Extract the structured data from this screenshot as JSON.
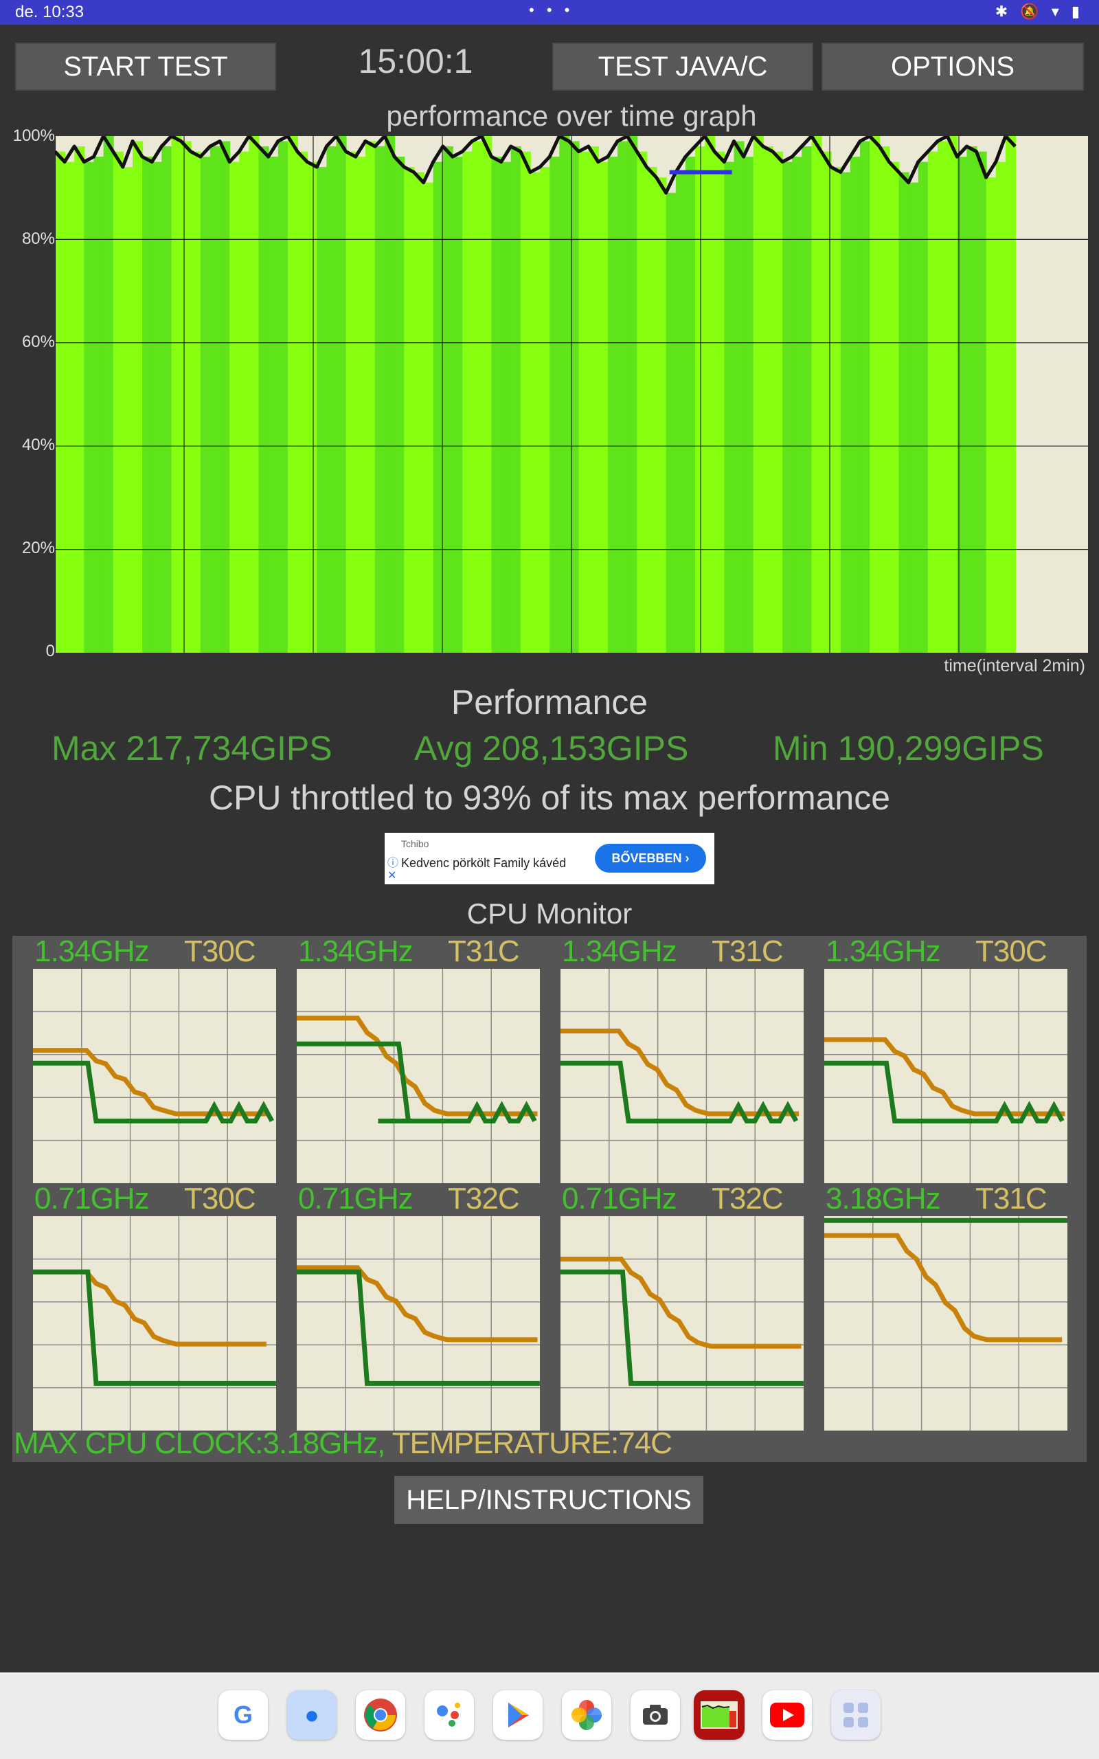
{
  "status_bar": {
    "time": "de. 10:33",
    "dots": "• • •",
    "icons": "✱ 🔕 ▾ ▮"
  },
  "toolbar": {
    "start_label": "START TEST",
    "timer": "15:00:1",
    "java_label": "TEST JAVA/C",
    "options_label": "OPTIONS"
  },
  "graph": {
    "title": "performance over time graph",
    "y_ticks": [
      "100%",
      "80%",
      "60%",
      "40%",
      "20%",
      "0"
    ],
    "x_label": "time(interval 2min)",
    "perf_values": [
      97,
      95,
      98,
      95,
      96,
      100,
      97,
      94,
      99,
      96,
      95,
      98,
      100,
      99,
      97,
      96,
      98,
      99,
      95,
      97,
      100,
      98,
      96,
      99,
      100,
      97,
      95,
      94,
      98,
      100,
      97,
      96,
      99,
      98,
      100,
      96,
      94,
      93,
      91,
      95,
      98,
      96,
      97,
      99,
      100,
      96,
      95,
      98,
      97,
      93,
      94,
      96,
      100,
      99,
      97,
      98,
      95,
      96,
      99,
      100,
      97,
      94,
      92,
      89,
      93,
      96,
      98,
      100,
      97,
      95,
      99,
      96,
      100,
      98,
      97,
      95,
      96,
      98,
      100,
      97,
      94,
      93,
      96,
      99,
      100,
      98,
      95,
      93,
      91,
      95,
      97,
      99,
      100,
      96,
      98,
      97,
      92,
      95,
      100,
      98
    ],
    "blue_segment": {
      "start_fraction": 0.64,
      "end_fraction": 0.705,
      "value": 93
    }
  },
  "performance": {
    "heading": "Performance",
    "max": "Max 217,734GIPS",
    "avg": "Avg 208,153GIPS",
    "min": "Min 190,299GIPS",
    "throttle": "CPU throttled to 93% of its max performance"
  },
  "ad": {
    "brand": "Tchibo",
    "text": "Kedvenc pörkölt Family kávéd",
    "cta": "BŐVEBBEN  ›"
  },
  "cpu_monitor": {
    "heading": "CPU Monitor",
    "cores": [
      {
        "freq": "1.34GHz",
        "temp": "T30C"
      },
      {
        "freq": "1.34GHz",
        "temp": "T31C"
      },
      {
        "freq": "1.34GHz",
        "temp": "T31C"
      },
      {
        "freq": "1.34GHz",
        "temp": "T30C"
      },
      {
        "freq": "0.71GHz",
        "temp": "T30C"
      },
      {
        "freq": "0.71GHz",
        "temp": "T32C"
      },
      {
        "freq": "0.71GHz",
        "temp": "T32C"
      },
      {
        "freq": "3.18GHz",
        "temp": "T31C"
      }
    ],
    "summary_clock": "MAX CPU CLOCK:3.18GHz,",
    "summary_temp": " TEMPERATURE:74C"
  },
  "help_label": "HELP/INSTRUCTIONS",
  "dock_apps": [
    "google-app",
    "messages-app",
    "chrome-app",
    "assistant-app",
    "play-store-app",
    "photos-app",
    "camera-app",
    "cpu-throttling-app",
    "youtube-app",
    "app-drawer"
  ],
  "colors": {
    "bar_green": "#5fe31b",
    "bar_green_light": "#86ff10",
    "graph_bg": "#ebe8d6",
    "freq_green": "#44c030",
    "temp_yellow": "#d6c064",
    "line_orange": "#c8820a",
    "line_green": "#1e7a1e"
  }
}
